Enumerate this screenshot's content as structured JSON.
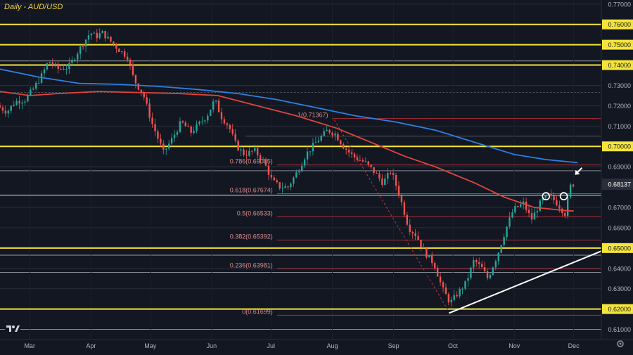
{
  "chart_data": {
    "type": "candlestick",
    "title": "Daily - AUD/USD",
    "ylim": [
      0.605,
      0.772
    ],
    "x_tick_labels": [
      {
        "label": "Mar",
        "day": 15
      },
      {
        "label": "Apr",
        "day": 46
      },
      {
        "label": "May",
        "day": 76
      },
      {
        "label": "Jun",
        "day": 107
      },
      {
        "label": "Jul",
        "day": 137
      },
      {
        "label": "Aug",
        "day": 168
      },
      {
        "label": "Sep",
        "day": 199
      },
      {
        "label": "Oct",
        "day": 229
      },
      {
        "label": "Nov",
        "day": 260
      },
      {
        "label": "Dec",
        "day": 290
      }
    ],
    "x_range_days": [
      0,
      304
    ],
    "y_tick_labels": [
      "0.77000",
      "0.76000",
      "0.75000",
      "0.74000",
      "0.73000",
      "0.72000",
      "0.71000",
      "0.70000",
      "0.69000",
      "0.67000",
      "0.66000",
      "0.65000",
      "0.64000",
      "0.63000",
      "0.62000",
      "0.61000"
    ],
    "key_levels": [
      0.76,
      0.75,
      0.74,
      0.7,
      0.65,
      0.62
    ],
    "key_level_labels": [
      "0.76000",
      "0.75000",
      "0.74000",
      "0.70000",
      "0.65000",
      "0.62000"
    ],
    "current_price": 0.6814,
    "current_price_label": "0.68137",
    "fibonacci": [
      {
        "label": "1(0.71367)",
        "value": 0.71367
      },
      {
        "label": "0.786(0.69085)",
        "value": 0.69085
      },
      {
        "label": "0.618(0.67674)",
        "value": 0.67674
      },
      {
        "label": "0.5(0.66533)",
        "value": 0.66533
      },
      {
        "label": "0.382(0.65392)",
        "value": 0.65392
      },
      {
        "label": "0.236(0.63981)",
        "value": 0.63981
      },
      {
        "label": "0(0.61699)",
        "value": 0.61699
      }
    ],
    "moving_averages": [
      {
        "name": "MA red",
        "color": "#e0453c",
        "points": [
          [
            0,
            0.727
          ],
          [
            15,
            0.725
          ],
          [
            30,
            0.726
          ],
          [
            50,
            0.727
          ],
          [
            70,
            0.7265
          ],
          [
            90,
            0.726
          ],
          [
            110,
            0.725
          ],
          [
            130,
            0.72
          ],
          [
            150,
            0.715
          ],
          [
            170,
            0.709
          ],
          [
            190,
            0.701
          ],
          [
            205,
            0.695
          ],
          [
            220,
            0.69
          ],
          [
            240,
            0.682
          ],
          [
            255,
            0.675
          ],
          [
            270,
            0.67
          ],
          [
            285,
            0.6685
          ],
          [
            290,
            0.6682
          ]
        ]
      },
      {
        "name": "MA blue",
        "color": "#2f7fe0",
        "points": [
          [
            0,
            0.738
          ],
          [
            20,
            0.734
          ],
          [
            40,
            0.731
          ],
          [
            60,
            0.7305
          ],
          [
            80,
            0.7295
          ],
          [
            100,
            0.728
          ],
          [
            120,
            0.726
          ],
          [
            140,
            0.723
          ],
          [
            160,
            0.719
          ],
          [
            180,
            0.715
          ],
          [
            200,
            0.712
          ],
          [
            220,
            0.708
          ],
          [
            240,
            0.702
          ],
          [
            260,
            0.696
          ],
          [
            276,
            0.6935
          ],
          [
            292,
            0.692
          ]
        ]
      }
    ],
    "trendline": {
      "from": [
        227,
        0.618
      ],
      "to": [
        304,
        0.6485
      ]
    },
    "price_path": [
      [
        0,
        0.72
      ],
      [
        5,
        0.717
      ],
      [
        9,
        0.722
      ],
      [
        14,
        0.723
      ],
      [
        18,
        0.728
      ],
      [
        22,
        0.734
      ],
      [
        26,
        0.742
      ],
      [
        31,
        0.738
      ],
      [
        36,
        0.739
      ],
      [
        41,
        0.747
      ],
      [
        47,
        0.756
      ],
      [
        50,
        0.754
      ],
      [
        53,
        0.756
      ],
      [
        57,
        0.752
      ],
      [
        61,
        0.748
      ],
      [
        66,
        0.744
      ],
      [
        69,
        0.733
      ],
      [
        74,
        0.725
      ],
      [
        78,
        0.712
      ],
      [
        84,
        0.697
      ],
      [
        88,
        0.703
      ],
      [
        93,
        0.712
      ],
      [
        98,
        0.707
      ],
      [
        103,
        0.712
      ],
      [
        106,
        0.715
      ],
      [
        110,
        0.723
      ],
      [
        113,
        0.715
      ],
      [
        117,
        0.71
      ],
      [
        121,
        0.7
      ],
      [
        125,
        0.696
      ],
      [
        130,
        0.698
      ],
      [
        135,
        0.692
      ],
      [
        139,
        0.683
      ],
      [
        143,
        0.68
      ],
      [
        147,
        0.68
      ],
      [
        152,
        0.688
      ],
      [
        156,
        0.696
      ],
      [
        162,
        0.703
      ],
      [
        167,
        0.708
      ],
      [
        171,
        0.706
      ],
      [
        175,
        0.7
      ],
      [
        180,
        0.695
      ],
      [
        186,
        0.692
      ],
      [
        191,
        0.687
      ],
      [
        195,
        0.682
      ],
      [
        199,
        0.688
      ],
      [
        203,
        0.677
      ],
      [
        208,
        0.66
      ],
      [
        212,
        0.656
      ],
      [
        216,
        0.648
      ],
      [
        221,
        0.642
      ],
      [
        225,
        0.63
      ],
      [
        229,
        0.623
      ],
      [
        233,
        0.628
      ],
      [
        237,
        0.633
      ],
      [
        241,
        0.644
      ],
      [
        245,
        0.64
      ],
      [
        248,
        0.635
      ],
      [
        253,
        0.647
      ],
      [
        257,
        0.659
      ],
      [
        261,
        0.669
      ],
      [
        266,
        0.672
      ],
      [
        270,
        0.664
      ],
      [
        275,
        0.673
      ],
      [
        279,
        0.676
      ],
      [
        283,
        0.672
      ],
      [
        287,
        0.667
      ],
      [
        290,
        0.6814
      ]
    ],
    "highlights": [
      {
        "name": "swing-high-circle",
        "day": 276,
        "value": 0.6755
      },
      {
        "name": "swing-high-circle",
        "day": 285,
        "value": 0.6755
      }
    ],
    "arrow_pointer": {
      "day": 291,
      "value": 0.686
    }
  }
}
